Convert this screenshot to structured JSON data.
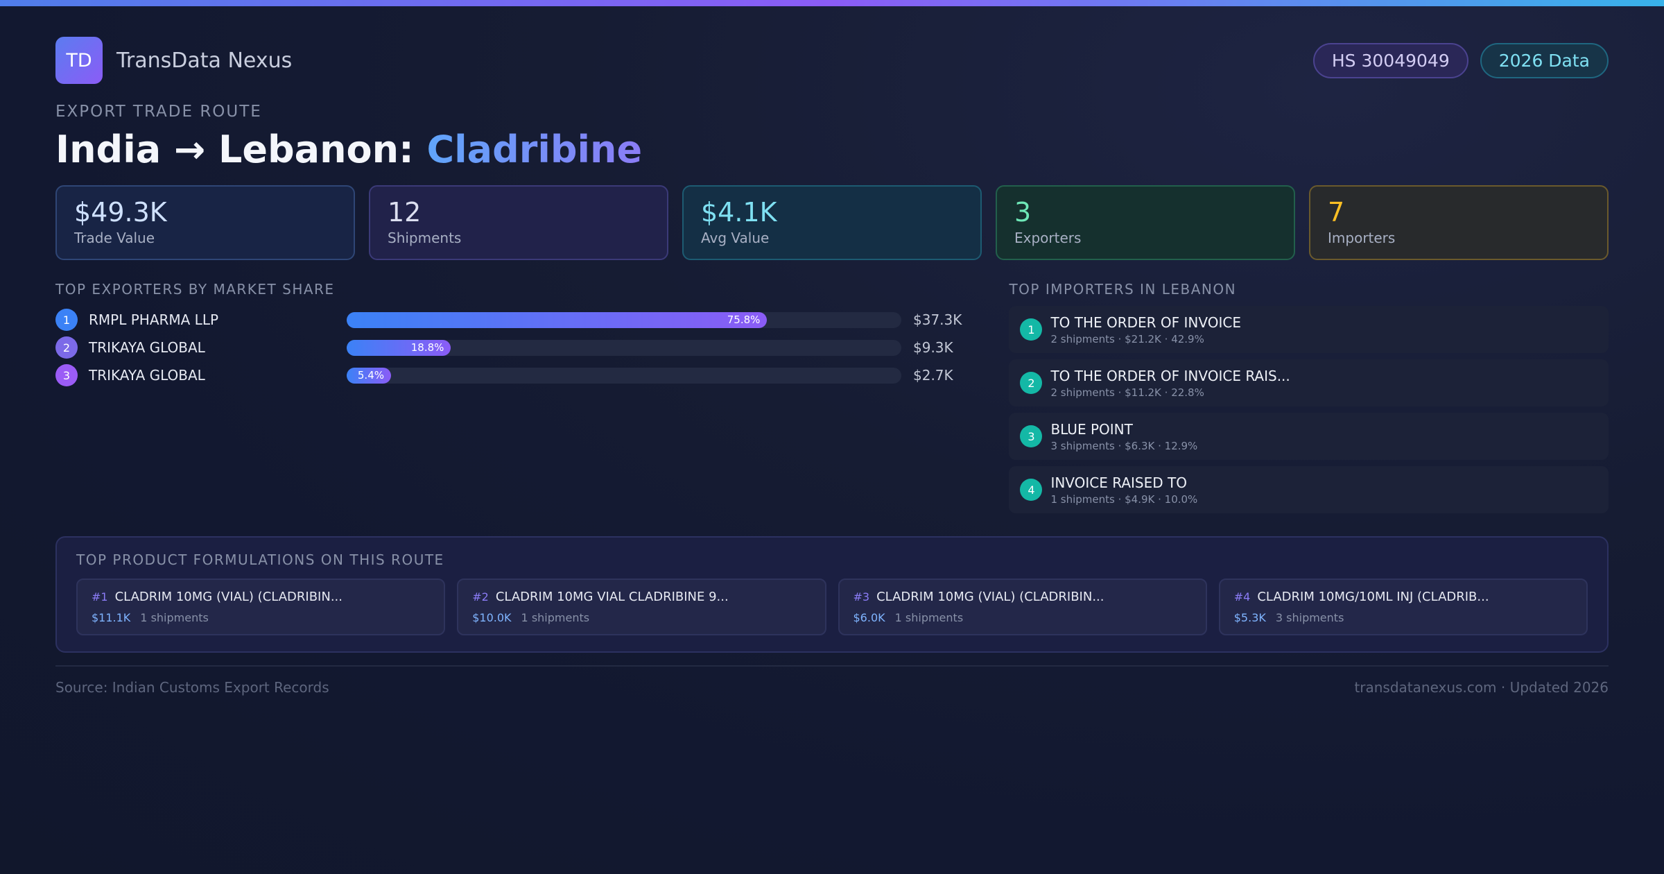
{
  "brand": {
    "logo_text": "TD",
    "name": "TransData Nexus"
  },
  "badges": {
    "hs_code": "HS 30049049",
    "year": "2026 Data"
  },
  "route": {
    "eyebrow": "EXPORT TRADE ROUTE",
    "title_prefix": "India → Lebanon: ",
    "product": "Cladribine"
  },
  "stats": [
    {
      "value": "$49.3K",
      "label": "Trade Value"
    },
    {
      "value": "12",
      "label": "Shipments"
    },
    {
      "value": "$4.1K",
      "label": "Avg Value"
    },
    {
      "value": "3",
      "label": "Exporters"
    },
    {
      "value": "7",
      "label": "Importers"
    }
  ],
  "exporters": {
    "heading": "TOP EXPORTERS BY MARKET SHARE",
    "items": [
      {
        "rank": "1",
        "name": "RMPL PHARMA LLP",
        "share": 75.8,
        "share_label": "75.8%",
        "value": "$37.3K"
      },
      {
        "rank": "2",
        "name": "TRIKAYA GLOBAL",
        "share": 18.8,
        "share_label": "18.8%",
        "value": "$9.3K"
      },
      {
        "rank": "3",
        "name": "TRIKAYA GLOBAL",
        "share": 5.4,
        "share_label": "5.4%",
        "value": "$2.7K"
      }
    ]
  },
  "importers": {
    "heading": "TOP IMPORTERS IN LEBANON",
    "items": [
      {
        "rank": "1",
        "name": "TO THE ORDER OF INVOICE",
        "meta": "2 shipments · $21.2K · 42.9%"
      },
      {
        "rank": "2",
        "name": "TO THE ORDER OF INVOICE RAIS...",
        "meta": "2 shipments · $11.2K · 22.8%"
      },
      {
        "rank": "3",
        "name": "BLUE POINT",
        "meta": "3 shipments · $6.3K · 12.9%"
      },
      {
        "rank": "4",
        "name": "INVOICE RAISED TO",
        "meta": "1 shipments · $4.9K · 10.0%"
      }
    ]
  },
  "products": {
    "heading": "TOP PRODUCT FORMULATIONS ON THIS ROUTE",
    "items": [
      {
        "rank": "#1",
        "name": "CLADRIM 10MG (VIAL) (CLADRIBIN...",
        "value": "$11.1K",
        "shipments": "1 shipments"
      },
      {
        "rank": "#2",
        "name": "CLADRIM 10MG VIAL CLADRIBINE 9...",
        "value": "$10.0K",
        "shipments": "1 shipments"
      },
      {
        "rank": "#3",
        "name": "CLADRIM 10MG (VIAL) (CLADRIBIN...",
        "value": "$6.0K",
        "shipments": "1 shipments"
      },
      {
        "rank": "#4",
        "name": "CLADRIM 10MG/10ML INJ (CLADRIB...",
        "value": "$5.3K",
        "shipments": "3 shipments"
      }
    ]
  },
  "footer": {
    "source": "Source: Indian Customs Export Records",
    "site": "transdatanexus.com · Updated 2026"
  }
}
